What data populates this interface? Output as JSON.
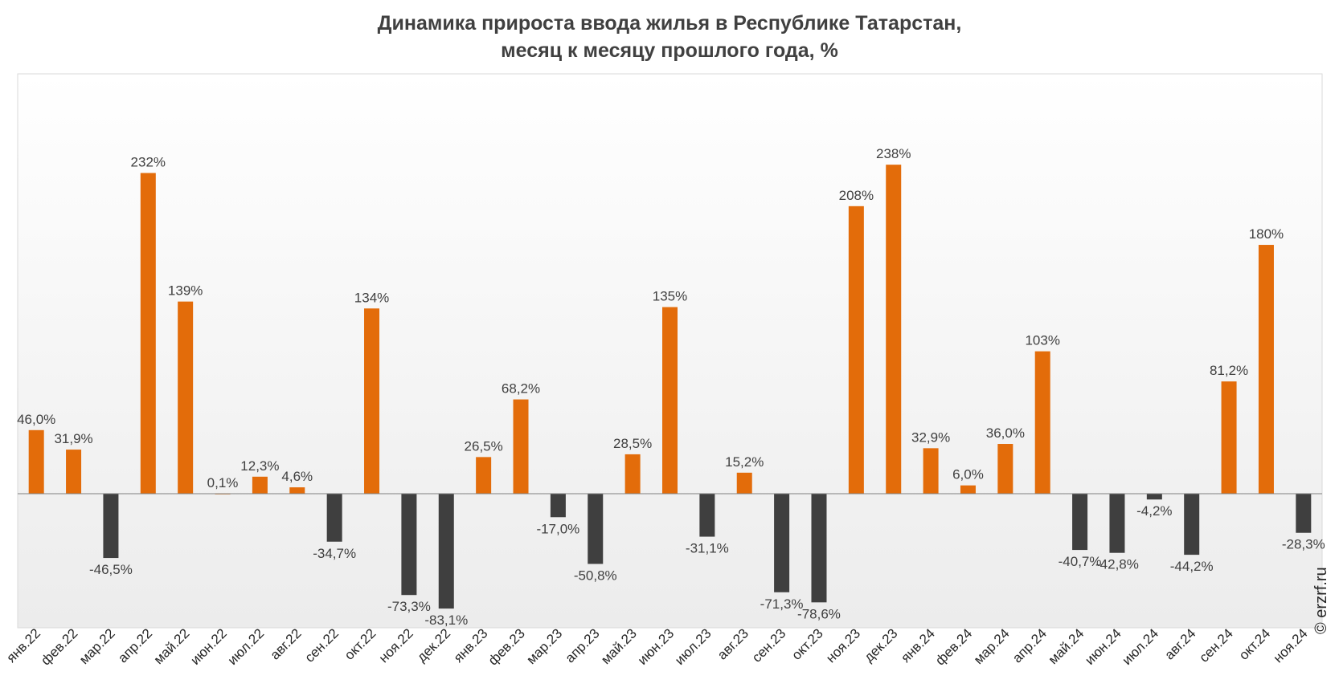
{
  "chart_data": {
    "type": "bar",
    "title": "Динамика прироста ввода жилья в Республике Татарстан,",
    "subtitle": "месяц к месяцу прошлого года, %",
    "xlabel": "",
    "ylabel": "",
    "grid": false,
    "legend": "none",
    "ylim": [
      -110,
      330
    ],
    "categories": [
      "янв.22",
      "фев.22",
      "мар.22",
      "апр.22",
      "май.22",
      "июн.22",
      "июл.22",
      "авг.22",
      "сен.22",
      "окт.22",
      "ноя.22",
      "дек.22",
      "янв.23",
      "фев.23",
      "мар.23",
      "апр.23",
      "май.23",
      "июн.23",
      "июл.23",
      "авг.23",
      "сен.23",
      "окт.23",
      "ноя.23",
      "дек.23",
      "янв.24",
      "фев.24",
      "мар.24",
      "апр.24",
      "май.24",
      "июн.24",
      "июл.24",
      "авг.24",
      "сен.24",
      "окт.24",
      "ноя.24"
    ],
    "values": [
      46.0,
      31.9,
      -46.5,
      232,
      139,
      0.1,
      12.3,
      4.6,
      -34.7,
      134,
      -73.3,
      -83.1,
      26.5,
      68.2,
      -17.0,
      -50.8,
      28.5,
      135,
      -31.1,
      15.2,
      -71.3,
      -78.6,
      208,
      238,
      32.9,
      6.0,
      36.0,
      103,
      -40.7,
      -42.8,
      -4.2,
      -44.2,
      81.2,
      180,
      -28.3
    ],
    "labels": [
      "46,0%",
      "31,9%",
      "-46,5%",
      "232%",
      "139%",
      "0,1%",
      "12,3%",
      "4,6%",
      "-34,7%",
      "134%",
      "-73,3%",
      "-83,1%",
      "26,5%",
      "68,2%",
      "-17,0%",
      "-50,8%",
      "28,5%",
      "135%",
      "-31,1%",
      "15,2%",
      "-71,3%",
      "-78,6%",
      "208%",
      "238%",
      "32,9%",
      "6,0%",
      "36,0%",
      "103%",
      "-40,7%",
      "-42,8%",
      "-4,2%",
      "-44,2%",
      "81,2%",
      "180%",
      "-28,3%"
    ]
  },
  "colors": {
    "positive": "#E36C0A",
    "negative": "#3F3F3F",
    "label": "#404040",
    "axis": "#7F7F7F",
    "plot_border": "#D9D9D9"
  },
  "watermark": "© erzrf.ru"
}
